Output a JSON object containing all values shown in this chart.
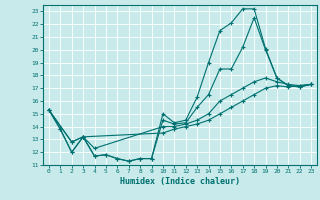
{
  "xlabel": "Humidex (Indice chaleur)",
  "bg_color": "#c8eaea",
  "line_color": "#007070",
  "grid_color": "#ffffff",
  "xlim": [
    -0.5,
    23.5
  ],
  "ylim": [
    11,
    23.5
  ],
  "yticks": [
    11,
    12,
    13,
    14,
    15,
    16,
    17,
    18,
    19,
    20,
    21,
    22,
    23
  ],
  "xticks": [
    0,
    1,
    2,
    3,
    4,
    5,
    6,
    7,
    8,
    9,
    10,
    11,
    12,
    13,
    14,
    15,
    16,
    17,
    18,
    19,
    20,
    21,
    22,
    23
  ],
  "line1_x": [
    0,
    1,
    2,
    3,
    4,
    5,
    6,
    7,
    8,
    9,
    10,
    11,
    12,
    13,
    14,
    15,
    16,
    17,
    18,
    19,
    20,
    21,
    22,
    23
  ],
  "line1_y": [
    15.3,
    13.8,
    12.0,
    13.2,
    11.7,
    11.8,
    11.5,
    11.3,
    11.5,
    11.5,
    15.0,
    14.3,
    14.5,
    16.3,
    19.0,
    21.5,
    22.1,
    23.2,
    23.2,
    20.1,
    17.8,
    17.2,
    17.1,
    17.3
  ],
  "line2_x": [
    0,
    1,
    2,
    3,
    4,
    5,
    6,
    7,
    8,
    9,
    10,
    11,
    12,
    13,
    14,
    15,
    16,
    17,
    18,
    19,
    20,
    21,
    22,
    23
  ],
  "line2_y": [
    15.3,
    13.8,
    12.0,
    13.2,
    11.7,
    11.8,
    11.5,
    11.3,
    11.5,
    11.5,
    14.5,
    14.2,
    14.3,
    15.5,
    16.5,
    18.5,
    18.5,
    20.2,
    22.5,
    20.0,
    17.8,
    17.2,
    17.1,
    17.3
  ],
  "line3_x": [
    0,
    2,
    3,
    4,
    10,
    11,
    12,
    13,
    14,
    15,
    16,
    17,
    18,
    19,
    20,
    21,
    22,
    23
  ],
  "line3_y": [
    15.3,
    12.8,
    13.2,
    12.3,
    14.0,
    14.0,
    14.2,
    14.5,
    15.0,
    16.0,
    16.5,
    17.0,
    17.5,
    17.8,
    17.5,
    17.3,
    17.2,
    17.3
  ],
  "line4_x": [
    0,
    2,
    3,
    10,
    11,
    12,
    13,
    14,
    15,
    16,
    17,
    18,
    19,
    20,
    21,
    22,
    23
  ],
  "line4_y": [
    15.3,
    12.8,
    13.2,
    13.5,
    13.8,
    14.0,
    14.2,
    14.5,
    15.0,
    15.5,
    16.0,
    16.5,
    17.0,
    17.2,
    17.1,
    17.2,
    17.3
  ]
}
